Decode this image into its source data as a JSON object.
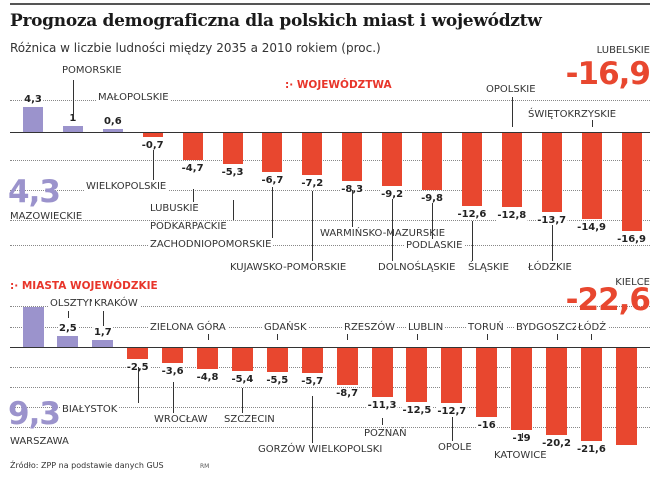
{
  "title": "Prognoza demograficzna dla polskich miast i województw",
  "subtitle": "Różnica w liczbie ludności między 2035 a 2010 rokiem (proc.)",
  "source": "Źródło: ZPP na podstawie danych GUS",
  "credit": "RM",
  "colors": {
    "positive": "#9b93cc",
    "negative": "#e8472f",
    "accent": "#e8352a"
  },
  "sections": {
    "voivodeships_label": ":· WOJEWÓDZTWA",
    "cities_label": ":· MIASTA WOJEWÓDZKIE"
  },
  "highlights": {
    "top_max": {
      "value": "4,3",
      "name": "MAZOWIECKIE"
    },
    "top_min": {
      "value": "-16,9",
      "name": "LUBELSKIE"
    },
    "bottom_max": {
      "value": "9,3",
      "name": "WARSZAWA"
    },
    "bottom_min": {
      "value": "-22,6",
      "name": "KIELCE"
    }
  },
  "chart_data": [
    {
      "type": "bar",
      "title": "Województwa",
      "ylabel": "Różnica w liczbie ludności 2035 vs 2010 (proc.)",
      "categories": [
        "Mazowieckie",
        "Pomorskie",
        "Małopolskie",
        "Wielkopolskie",
        "Lubuskie",
        "Podkarpackie",
        "Zachodniopomorskie",
        "Kujawsko-pomorskie",
        "Warmińsko-mazurskie",
        "Dolnośląskie",
        "Podlaskie",
        "Śląskie",
        "Opolskie",
        "Łódzkie",
        "Świętokrzyskie",
        "Lubelskie"
      ],
      "values": [
        4.3,
        1,
        0.6,
        -0.7,
        -4.7,
        -5.3,
        -6.7,
        -7.2,
        -8.3,
        -9.2,
        -9.8,
        -12.6,
        -12.8,
        -13.7,
        -14.9,
        -16.9
      ],
      "labels": [
        "4,3",
        "1",
        "0,6",
        "-0,7",
        "-4,7",
        "-5,3",
        "-6,7",
        "-7,2",
        "-8,3",
        "-9,2",
        "-9,8",
        "-12,6",
        "-12,8",
        "-13,7",
        "-14,9",
        "-16,9"
      ],
      "names": [
        "MAZOWIECKIE",
        "POMORSKIE",
        "MAŁOPOLSKIE",
        "WIELKOPOLSKIE",
        "LUBUSKIE",
        "PODKARPACKIE",
        "ZACHODNIOPOMORSKIE",
        "KUJAWSKO-POMORSKIE",
        "WARMIŃSKO-MAZURSKIE",
        "DOLNOŚLĄSKIE",
        "PODLASKIE",
        "ŚLĄSKIE",
        "OPOLSKIE",
        "ŁÓDZKIE",
        "ŚWIĘTOKRZYSKIE",
        "LUBELSKIE"
      ],
      "grid": true
    },
    {
      "type": "bar",
      "title": "Miasta wojewódzkie",
      "ylabel": "Różnica w liczbie ludności 2035 vs 2010 (proc.)",
      "categories": [
        "Warszawa",
        "Olsztyn",
        "Kraków",
        "Białystok",
        "Wrocław",
        "Zielona Góra",
        "Szczecin",
        "Gdańsk",
        "Gorzów Wielkopolski",
        "Rzeszów",
        "Poznań",
        "Lublin",
        "Opole",
        "Toruń",
        "Katowice",
        "Bydgoszcz",
        "Łódź",
        "Kielce"
      ],
      "values": [
        9.3,
        2.5,
        1.7,
        -2.5,
        -3.6,
        -4.8,
        -5.4,
        -5.5,
        -5.7,
        -8.7,
        -11.3,
        -12.5,
        -12.7,
        -16,
        -19,
        -20.2,
        -21.6,
        -22.6
      ],
      "labels": [
        "9,3",
        "2,5",
        "1,7",
        "-2,5",
        "-3,6",
        "-4,8",
        "-5,4",
        "-5,5",
        "-5,7",
        "-8,7",
        "-11,3",
        "-12,5",
        "-12,7",
        "-16",
        "-19",
        "-20,2",
        "-21,6",
        "-22,6"
      ],
      "names": [
        "WARSZAWA",
        "OLSZTYN",
        "KRAKÓW",
        "BIAŁYSTOK",
        "WROCŁAW",
        "ZIELONA GÓRA",
        "SZCZECIN",
        "GDAŃSK",
        "GORZÓW WIELKOPOLSKI",
        "RZESZÓW",
        "POZNAŃ",
        "LUBLIN",
        "OPOLE",
        "TORUŃ",
        "KATOWICE",
        "BYDGOSZCZ",
        "ŁÓDŹ",
        "KIELCE"
      ],
      "grid": true
    }
  ]
}
